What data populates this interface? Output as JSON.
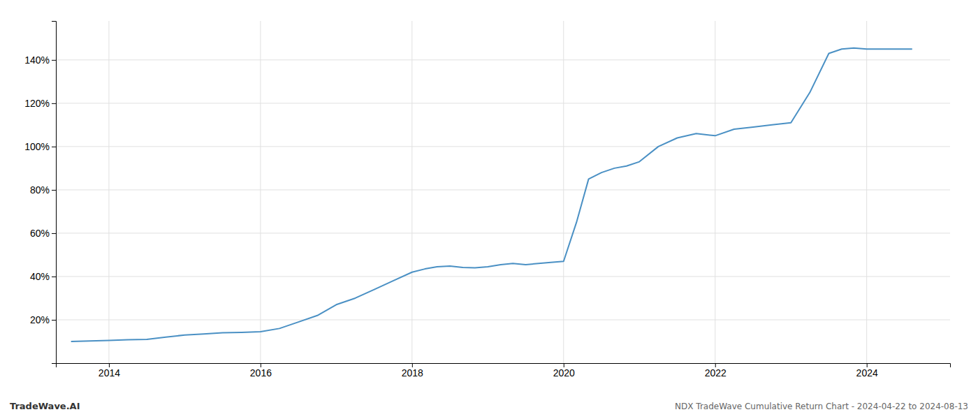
{
  "chart_data": {
    "type": "line",
    "title": "NDX TradeWave Cumulative Return Chart - 2024-04-22 to 2024-08-13",
    "annotations": [
      "TradeWave.AI"
    ],
    "x": [
      2013.5,
      2013.75,
      2014.0,
      2014.25,
      2014.5,
      2014.75,
      2015.0,
      2015.25,
      2015.5,
      2015.75,
      2016.0,
      2016.25,
      2016.5,
      2016.75,
      2017.0,
      2017.25,
      2017.5,
      2017.75,
      2018.0,
      2018.17,
      2018.33,
      2018.5,
      2018.67,
      2018.83,
      2019.0,
      2019.17,
      2019.33,
      2019.5,
      2019.67,
      2019.83,
      2020.0,
      2020.17,
      2020.33,
      2020.5,
      2020.67,
      2020.83,
      2021.0,
      2021.25,
      2021.5,
      2021.75,
      2022.0,
      2022.25,
      2022.5,
      2022.75,
      2023.0,
      2023.25,
      2023.5,
      2023.67,
      2023.83,
      2024.0,
      2024.2,
      2024.4,
      2024.6
    ],
    "values": [
      10.0,
      10.2,
      10.5,
      10.8,
      11.0,
      12.0,
      13.0,
      13.5,
      14.0,
      14.2,
      14.5,
      16.0,
      19.0,
      22.0,
      27.0,
      30.0,
      34.0,
      38.0,
      42.0,
      43.5,
      44.5,
      44.8,
      44.2,
      44.0,
      44.5,
      45.5,
      46.0,
      45.5,
      46.0,
      46.5,
      47.0,
      65.0,
      85.0,
      88.0,
      90.0,
      91.0,
      93.0,
      100.0,
      104.0,
      106.0,
      105.0,
      108.0,
      109.0,
      110.0,
      111.0,
      125.0,
      143.0,
      145.0,
      145.5,
      145.0,
      145.0,
      145.0,
      145.0
    ],
    "color": "#4a90c4",
    "xlim": [
      2013.3,
      2025.1
    ],
    "ylim": [
      0,
      158
    ],
    "xticks": [
      2014,
      2016,
      2018,
      2020,
      2022,
      2024
    ],
    "yticks": [
      {
        "value": 20,
        "label": "20%"
      },
      {
        "value": 40,
        "label": "40%"
      },
      {
        "value": 60,
        "label": "60%"
      },
      {
        "value": 80,
        "label": "80%"
      },
      {
        "value": 100,
        "label": "100%"
      },
      {
        "value": 120,
        "label": "120%"
      },
      {
        "value": 140,
        "label": "140%"
      }
    ],
    "grid": true
  }
}
